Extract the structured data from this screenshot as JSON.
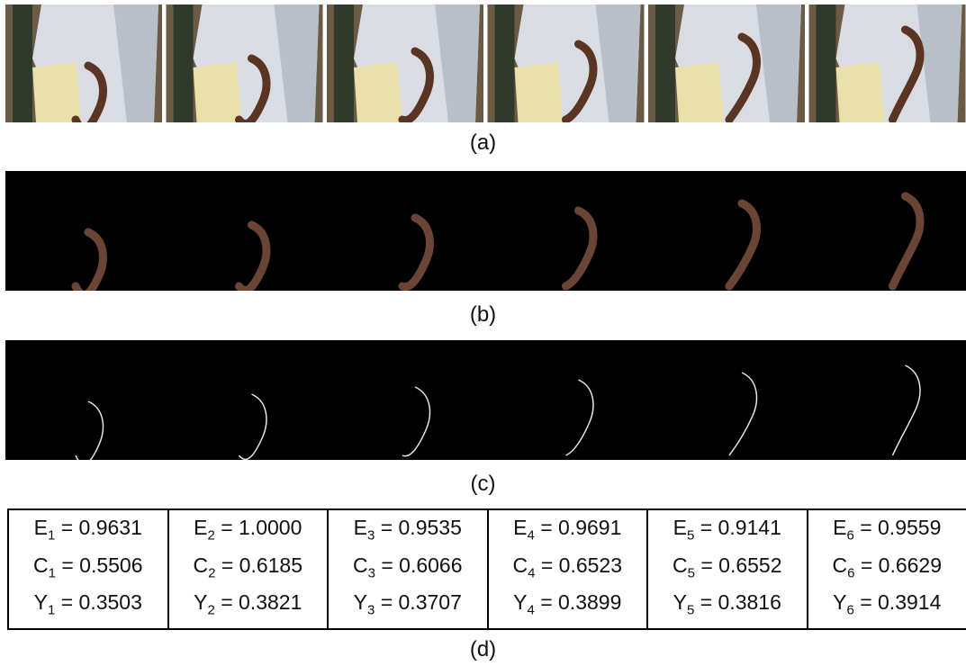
{
  "captions": [
    "(a)",
    "(b)",
    "(c)",
    "(d)"
  ],
  "equals": "=",
  "table": {
    "cells": [
      {
        "rows": [
          {
            "symbol": "E",
            "index": "1",
            "value": "0.9631"
          },
          {
            "symbol": "C",
            "index": "1",
            "value": "0.5506"
          },
          {
            "symbol": "Y",
            "index": "1",
            "value": "0.3503"
          }
        ]
      },
      {
        "rows": [
          {
            "symbol": "E",
            "index": "2",
            "value": "1.0000"
          },
          {
            "symbol": "C",
            "index": "2",
            "value": "0.6185"
          },
          {
            "symbol": "Y",
            "index": "2",
            "value": "0.3821"
          }
        ]
      },
      {
        "rows": [
          {
            "symbol": "E",
            "index": "3",
            "value": "0.9535"
          },
          {
            "symbol": "C",
            "index": "3",
            "value": "0.6066"
          },
          {
            "symbol": "Y",
            "index": "3",
            "value": "0.3707"
          }
        ]
      },
      {
        "rows": [
          {
            "symbol": "E",
            "index": "4",
            "value": "0.9691"
          },
          {
            "symbol": "C",
            "index": "4",
            "value": "0.6523"
          },
          {
            "symbol": "Y",
            "index": "4",
            "value": "0.3899"
          }
        ]
      },
      {
        "rows": [
          {
            "symbol": "E",
            "index": "5",
            "value": "0.9141"
          },
          {
            "symbol": "C",
            "index": "5",
            "value": "0.6552"
          },
          {
            "symbol": "Y",
            "index": "5",
            "value": "0.3816"
          }
        ]
      },
      {
        "rows": [
          {
            "symbol": "E",
            "index": "6",
            "value": "0.9559"
          },
          {
            "symbol": "C",
            "index": "6",
            "value": "0.6629"
          },
          {
            "symbol": "Y",
            "index": "6",
            "value": "0.3914"
          }
        ]
      }
    ]
  }
}
